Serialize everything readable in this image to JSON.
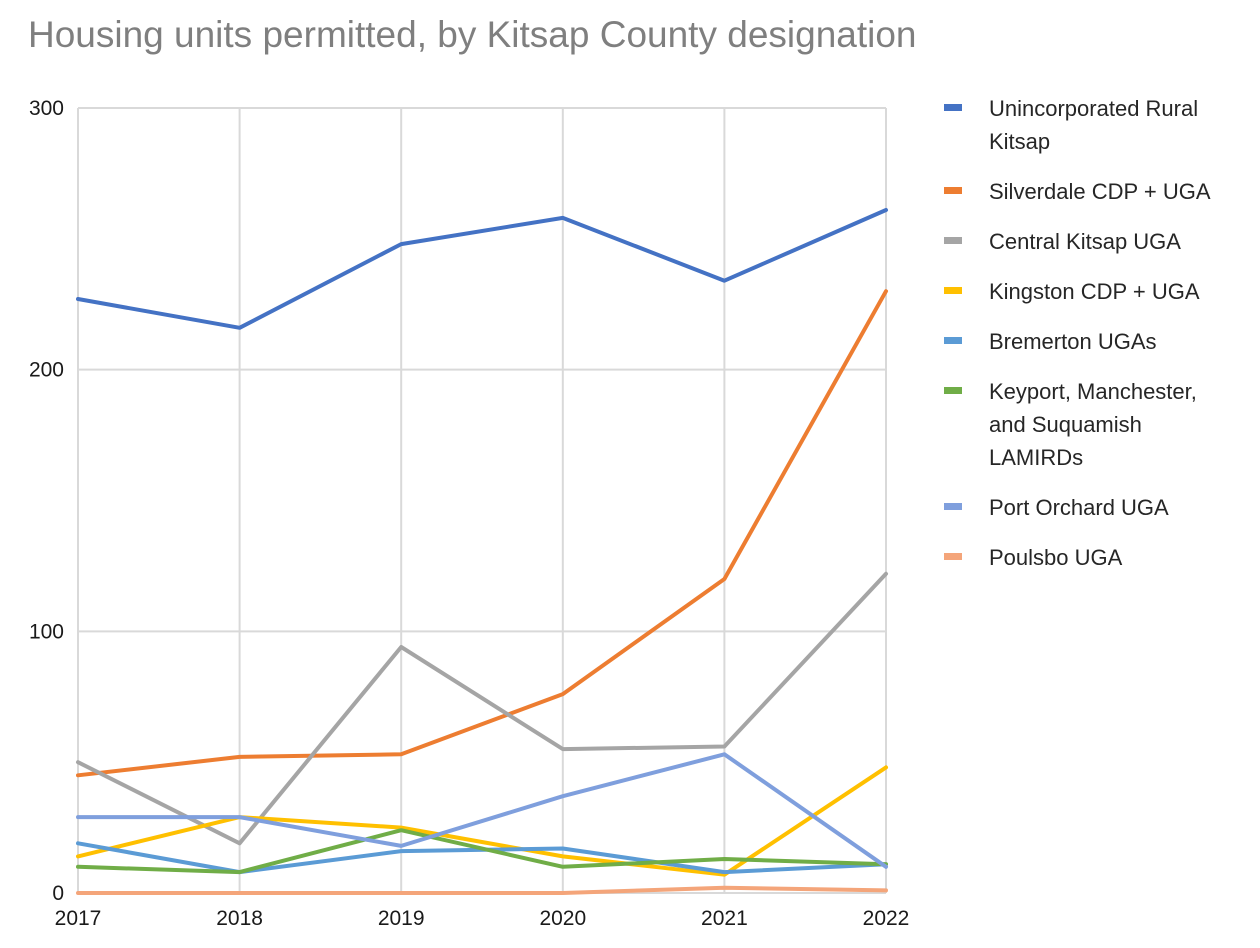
{
  "chart_data": {
    "type": "line",
    "title": "Housing units permitted, by Kitsap County designation",
    "x": [
      "2017",
      "2018",
      "2019",
      "2020",
      "2021",
      "2022"
    ],
    "ylim": [
      0,
      300
    ],
    "yticks": [
      "0",
      "100",
      "200",
      "300"
    ],
    "grid": true,
    "legend_position": "right",
    "series": [
      {
        "name": "Unincorporated Rural\nKitsap",
        "color": "#4472c4",
        "values": [
          227,
          216,
          248,
          258,
          234,
          261
        ]
      },
      {
        "name": "Silverdale CDP + UGA",
        "color": "#ed7d31",
        "values": [
          45,
          52,
          53,
          76,
          120,
          230
        ]
      },
      {
        "name": "Central Kitsap UGA",
        "color": "#a5a5a5",
        "values": [
          50,
          19,
          94,
          55,
          56,
          122
        ]
      },
      {
        "name": "Kingston CDP + UGA",
        "color": "#ffc000",
        "values": [
          14,
          29,
          25,
          14,
          7,
          48
        ]
      },
      {
        "name": "Bremerton UGAs",
        "color": "#5b9bd5",
        "values": [
          19,
          8,
          16,
          17,
          8,
          11
        ]
      },
      {
        "name": "Keyport, Manchester,\nand Suquamish\nLAMIRDs",
        "color": "#70ad47",
        "values": [
          10,
          8,
          24,
          10,
          13,
          11
        ]
      },
      {
        "name": "Port Orchard UGA",
        "color": "#7f9fdd",
        "values": [
          29,
          29,
          18,
          37,
          53,
          10
        ]
      },
      {
        "name": "Poulsbo UGA",
        "color": "#f4a57a",
        "values": [
          0,
          0,
          0,
          0,
          2,
          1
        ]
      }
    ]
  }
}
